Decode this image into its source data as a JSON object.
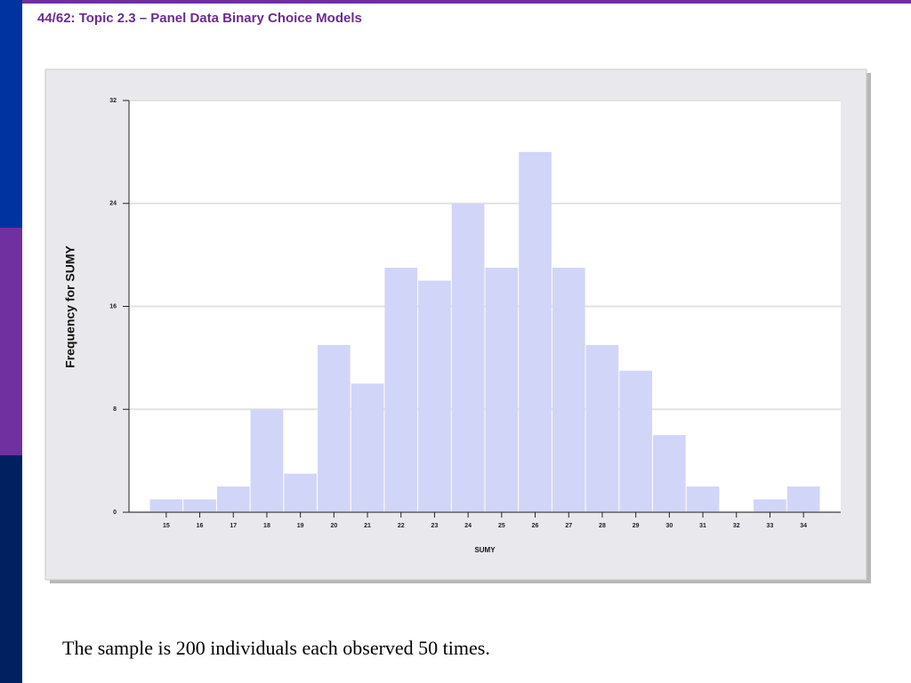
{
  "header": "44/62: Topic 2.3 – Panel Data Binary Choice Models",
  "caption": "The sample is 200 individuals each observed 50 times.",
  "chart_data": {
    "type": "bar",
    "x_label": "SUMY",
    "y_label": "Frequency for SUMY",
    "categories": [
      "15",
      "16",
      "17",
      "18",
      "19",
      "20",
      "21",
      "22",
      "23",
      "24",
      "25",
      "26",
      "27",
      "28",
      "29",
      "30",
      "31",
      "32",
      "33",
      "34"
    ],
    "values": [
      1,
      1,
      2,
      8,
      3,
      13,
      10,
      19,
      18,
      24,
      19,
      28,
      19,
      13,
      11,
      6,
      2,
      0,
      1,
      2
    ],
    "color": "#d1d5f7",
    "ylim": [
      0,
      32
    ],
    "yticks": [
      0,
      8,
      16,
      24,
      32
    ],
    "grid": true
  }
}
